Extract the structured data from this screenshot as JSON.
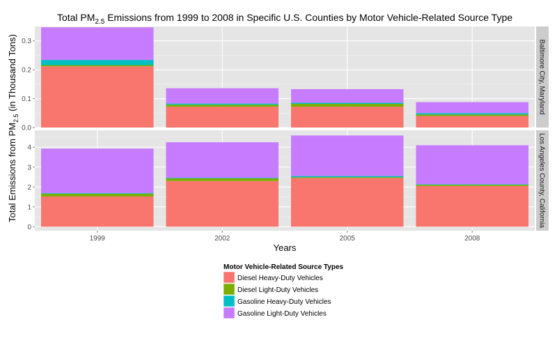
{
  "chart_data": {
    "type": "bar",
    "stacked": true,
    "title": "Total PM2.5 Emissions from 1999 to 2008 in Specific U.S. Counties by Motor Vehicle-Related Source Type",
    "title_parts": {
      "before": "Total PM",
      "subscript": "2.5",
      "after": " Emissions from 1999 to 2008 in Specific U.S. Counties by Motor Vehicle-Related Source Type"
    },
    "xlabel": "Years",
    "ylabel_parts": {
      "before": "Total Emissions from  PM",
      "subscript": "2.5",
      "after": " (in Thousand Tons)"
    },
    "categories": [
      "1999",
      "2002",
      "2005",
      "2008"
    ],
    "legend": {
      "title": "Motor Vehicle-Related Source Types",
      "position": "bottom"
    },
    "series_colors": {
      "Diesel Heavy-Duty Vehicles": "#F8766D",
      "Diesel Light-Duty Vehicles": "#7CAE00",
      "Gasoline Heavy-Duty Vehicles": "#00BFC4",
      "Gasoline Light-Duty Vehicles": "#C77CFF"
    },
    "grid": true,
    "panel_background": "#E5E5E5",
    "facets": [
      {
        "label": "Baltimore City, Maryland",
        "ylim": [
          0,
          0.35
        ],
        "yticks": [
          0.0,
          0.1,
          0.2,
          0.3
        ],
        "ytick_labels": [
          "0.0",
          "0.1",
          "0.2",
          "0.3"
        ],
        "series": [
          {
            "name": "Diesel Heavy-Duty Vehicles",
            "values": [
              0.212,
              0.072,
              0.072,
              0.04
            ]
          },
          {
            "name": "Diesel Light-Duty Vehicles",
            "values": [
              0.004,
              0.007,
              0.01,
              0.005
            ]
          },
          {
            "name": "Gasoline Heavy-Duty Vehicles",
            "values": [
              0.018,
              0.004,
              0.004,
              0.005
            ]
          },
          {
            "name": "Gasoline Light-Duty Vehicles",
            "values": [
              0.113,
              0.053,
              0.047,
              0.038
            ]
          }
        ]
      },
      {
        "label": "Los Angeles County, California",
        "ylim": [
          -0.2,
          4.85
        ],
        "yticks": [
          0,
          1,
          2,
          3,
          4
        ],
        "ytick_labels": [
          "0",
          "1",
          "2",
          "3",
          "4"
        ],
        "series": [
          {
            "name": "Diesel Heavy-Duty Vehicles",
            "values": [
              1.52,
              2.3,
              2.45,
              2.05
            ]
          },
          {
            "name": "Diesel Light-Duty Vehicles",
            "values": [
              0.14,
              0.13,
              0.04,
              0.06
            ]
          },
          {
            "name": "Gasoline Heavy-Duty Vehicles",
            "values": [
              0.03,
              0.03,
              0.06,
              0.03
            ]
          },
          {
            "name": "Gasoline Light-Duty Vehicles",
            "values": [
              2.24,
              1.79,
              2.04,
              1.96
            ]
          }
        ]
      }
    ]
  }
}
